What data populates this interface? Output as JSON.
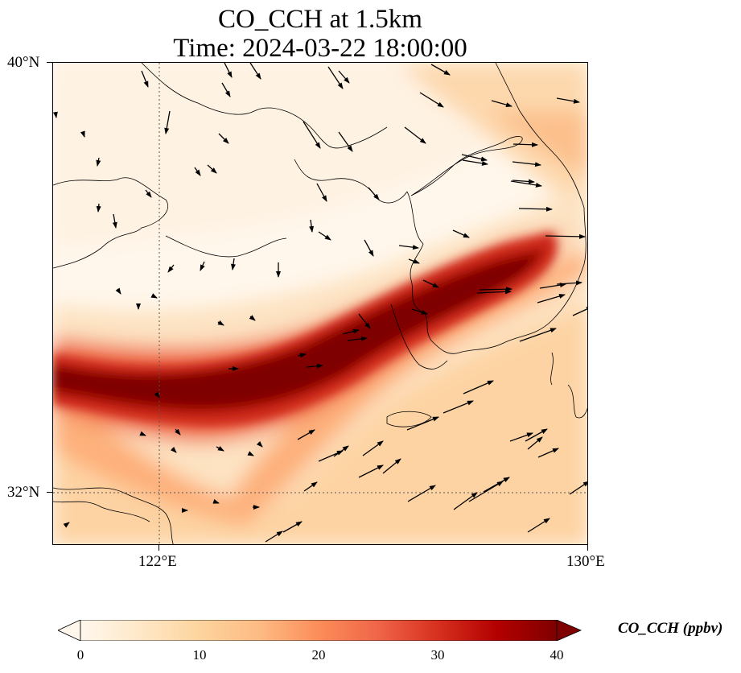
{
  "title": {
    "line1": "CO_CCH at 1.5km",
    "line2": "Time: 2024-03-22 18:00:00"
  },
  "map": {
    "lat_range": [
      31.2,
      40.0
    ],
    "lon_range": [
      120.0,
      130.0
    ],
    "gridlines": "dotted, at 122°E and 32°N",
    "lat_ticks": [
      "40°N",
      "32°N"
    ],
    "lon_ticks": [
      "122°E",
      "130°E"
    ],
    "field": "CO_CCH",
    "level": "1.5km",
    "plume": "dark red band (>40 ppbv) from the west edge near 33.5°N rising northeast through the Korean Peninsula toward 36.5°N 129°E",
    "vectors": "wind arrows; northerly/southeasterly over the Yellow Sea, strong westerly-southwesterly over southern Korea and the East Sea"
  },
  "colorbar": {
    "colormap": "OrRd",
    "min": 0,
    "max": 40,
    "extend": "both",
    "tick_labels": [
      "0",
      "10",
      "20",
      "30",
      "40"
    ],
    "colors": [
      "#fff7ec",
      "#fee8c8",
      "#fdd49e",
      "#fdbb84",
      "#fc8d59",
      "#ef6548",
      "#d7301f",
      "#b30000",
      "#7f0000"
    ],
    "label": "CO_CCH (ppbv)"
  }
}
